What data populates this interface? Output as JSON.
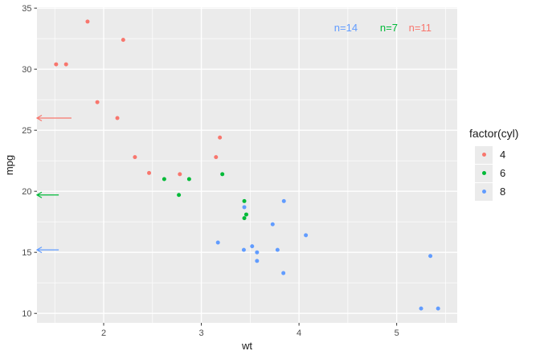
{
  "chart_data": {
    "type": "scatter",
    "title": "",
    "xlabel": "wt",
    "ylabel": "mpg",
    "xlim": [
      1.317,
      5.62
    ],
    "ylim": [
      9.225,
      35.075
    ],
    "x_major_ticks": [
      2,
      3,
      4,
      5
    ],
    "x_minor_ticks": [
      1.5,
      2.5,
      3.5,
      4.5,
      5.5
    ],
    "y_major_ticks": [
      10,
      15,
      20,
      25,
      30,
      35
    ],
    "y_minor_ticks": [
      12.5,
      17.5,
      22.5,
      27.5,
      32.5
    ],
    "panel_bg": "#EBEBEB",
    "grid_color": "#FFFFFF",
    "tick_color": "#333333",
    "tick_label_color": "#4D4D4D",
    "series": [
      {
        "name": "4",
        "color": "#F8766D",
        "points": [
          [
            2.32,
            22.8
          ],
          [
            3.19,
            24.4
          ],
          [
            3.15,
            22.8
          ],
          [
            2.2,
            32.4
          ],
          [
            1.615,
            30.4
          ],
          [
            1.835,
            33.9
          ],
          [
            2.465,
            21.5
          ],
          [
            1.935,
            27.3
          ],
          [
            2.14,
            26.0
          ],
          [
            1.513,
            30.4
          ],
          [
            2.78,
            21.4
          ]
        ]
      },
      {
        "name": "6",
        "color": "#00BA38",
        "points": [
          [
            2.62,
            21.0
          ],
          [
            2.875,
            21.0
          ],
          [
            3.215,
            21.4
          ],
          [
            3.46,
            18.1
          ],
          [
            3.44,
            19.2
          ],
          [
            3.44,
            17.8
          ],
          [
            2.77,
            19.7
          ]
        ]
      },
      {
        "name": "8",
        "color": "#619CFF",
        "points": [
          [
            3.44,
            18.7
          ],
          [
            3.57,
            14.3
          ],
          [
            4.07,
            16.4
          ],
          [
            3.73,
            17.3
          ],
          [
            3.78,
            15.2
          ],
          [
            5.25,
            10.4
          ],
          [
            5.424,
            10.4
          ],
          [
            5.345,
            14.7
          ],
          [
            3.52,
            15.5
          ],
          [
            3.435,
            15.2
          ],
          [
            3.84,
            13.3
          ],
          [
            3.845,
            19.2
          ],
          [
            3.17,
            15.8
          ],
          [
            3.57,
            15.0
          ]
        ]
      }
    ],
    "annotations": [
      {
        "text": "n=14",
        "color": "#619CFF",
        "x": 4.48,
        "y": 33.4
      },
      {
        "text": "n=7",
        "color": "#00BA38",
        "x": 4.92,
        "y": 33.4
      },
      {
        "text": "n=11",
        "color": "#F8766D",
        "x": 5.24,
        "y": 33.4
      }
    ],
    "arrows": [
      {
        "color": "#F8766D",
        "y": 26.0,
        "x_from": 1.67,
        "x_to": 1.317
      },
      {
        "color": "#00BA38",
        "y": 19.7,
        "x_from": 1.54,
        "x_to": 1.317
      },
      {
        "color": "#619CFF",
        "y": 15.2,
        "x_from": 1.54,
        "x_to": 1.317
      }
    ],
    "legend": {
      "title": "factor(cyl)",
      "key_bg": "#EBEBEB",
      "items": [
        {
          "label": "4",
          "color": "#F8766D"
        },
        {
          "label": "6",
          "color": "#00BA38"
        },
        {
          "label": "8",
          "color": "#619CFF"
        }
      ]
    }
  }
}
